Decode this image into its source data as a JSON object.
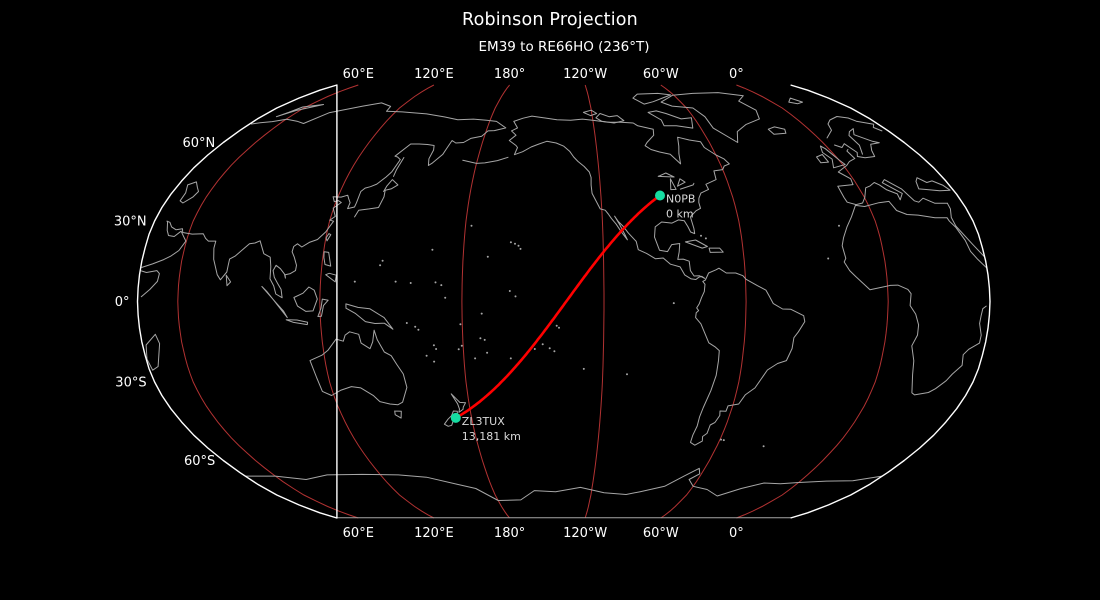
{
  "figure": {
    "title": "Robinson Projection",
    "subtitle": "EM39 to RE66HO (236°T)"
  },
  "map": {
    "projection": "Robinson",
    "central_longitude": -137
  },
  "gridlines": {
    "lon_step_deg": 60,
    "lat_step_deg": 30,
    "lon_labels": [
      {
        "lon": 60,
        "text": "60°E"
      },
      {
        "lon": 120,
        "text": "120°E"
      },
      {
        "lon": 180,
        "text": "180°"
      },
      {
        "lon": -120,
        "text": "120°W"
      },
      {
        "lon": -60,
        "text": "60°W"
      },
      {
        "lon": 0,
        "text": "0°"
      }
    ],
    "lat_labels": [
      {
        "lat": 60,
        "text": "60°N"
      },
      {
        "lat": 30,
        "text": "30°N"
      },
      {
        "lat": 0,
        "text": "0°"
      },
      {
        "lat": -30,
        "text": "30°S"
      },
      {
        "lat": -60,
        "text": "60°S"
      }
    ]
  },
  "path": {
    "from_grid": "EM39",
    "to_grid": "RE66HO",
    "azimuth_label": "236°T",
    "distance_km": "13,181"
  },
  "stations": [
    {
      "callsign": "N0PB",
      "grid": "EM39",
      "lat": 39.5,
      "lon": -93.0,
      "distance_label": "0 km"
    },
    {
      "callsign": "ZL3TUX",
      "grid": "RE66HO",
      "lat": -43.4,
      "lon": 172.6,
      "distance_label": "13,181 km"
    }
  ],
  "colors": {
    "background": "#000000",
    "outline": "#ffffff",
    "coastline": "#a6a6a6",
    "graticule": "#b23232",
    "great_circle": "#ff0000",
    "marker": "#16dda2",
    "tick_text": "#ffffff",
    "station_text": "#d9d9d9",
    "title_text": "#ffffff"
  }
}
